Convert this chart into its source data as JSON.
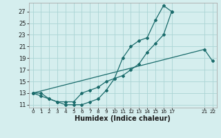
{
  "xlabel": "Humidex (Indice chaleur)",
  "bg_color": "#d5eeee",
  "grid_color": "#aad4d4",
  "line_color": "#1a6b6b",
  "xlim": [
    -0.5,
    22.5
  ],
  "ylim": [
    10.5,
    28.5
  ],
  "yticks": [
    11,
    13,
    15,
    17,
    19,
    21,
    23,
    25,
    27
  ],
  "xtick_positions": [
    0,
    1,
    2,
    3,
    4,
    5,
    6,
    7,
    8,
    9,
    10,
    11,
    12,
    13,
    14,
    15,
    16,
    17,
    21,
    22
  ],
  "xtick_labels": [
    "0",
    "1",
    "2",
    "3",
    "4",
    "5",
    "6",
    "7",
    "8",
    "9",
    "10",
    "11",
    "12",
    "13",
    "14",
    "15",
    "16",
    "17",
    "21",
    "22"
  ],
  "line1_x": [
    0,
    1,
    2,
    3,
    4,
    5,
    6,
    7,
    8,
    9,
    10,
    11,
    12,
    13,
    14,
    15,
    16,
    17
  ],
  "line1_y": [
    13,
    13,
    12,
    11.5,
    11,
    11,
    11,
    11.5,
    12,
    13.5,
    15.5,
    19,
    21,
    22,
    22.5,
    25.5,
    28,
    27
  ],
  "line2_x": [
    0,
    1,
    2,
    3,
    4,
    5,
    6,
    7,
    8,
    9,
    10,
    11,
    12,
    13,
    14,
    15,
    16,
    17
  ],
  "line2_y": [
    13,
    12.5,
    12,
    11.5,
    11.5,
    11.5,
    13,
    13.5,
    14,
    15,
    15.5,
    16,
    17,
    18,
    20,
    21.5,
    23,
    27
  ],
  "line3_x": [
    0,
    21,
    22
  ],
  "line3_y": [
    13,
    20.5,
    18.5
  ]
}
